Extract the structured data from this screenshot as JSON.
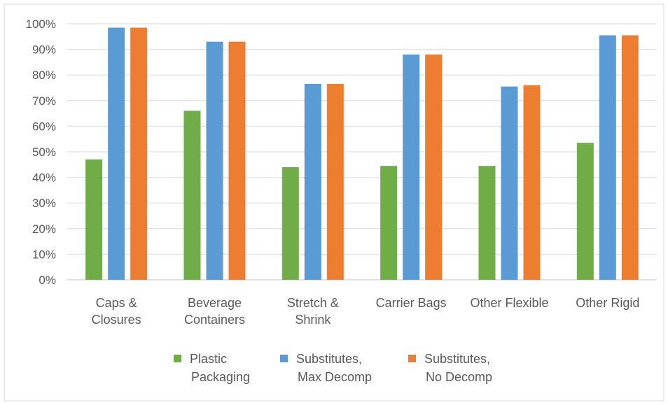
{
  "chart_data": {
    "type": "bar",
    "title": "",
    "xlabel": "",
    "ylabel": "",
    "categories": [
      [
        "Caps &",
        "Closures"
      ],
      [
        "Beverage",
        "Containers"
      ],
      [
        "Stretch &",
        "Shrink"
      ],
      [
        "Carrier Bags"
      ],
      [
        "Other Flexible"
      ],
      [
        "Other Rigid"
      ]
    ],
    "series": [
      {
        "name": [
          "Plastic",
          "Packaging"
        ],
        "color": "#70AD47",
        "values": [
          0.47,
          0.66,
          0.44,
          0.445,
          0.445,
          0.535
        ]
      },
      {
        "name": [
          "Substitutes,",
          "Max Decomp"
        ],
        "color": "#5B9BD5",
        "values": [
          0.985,
          0.93,
          0.765,
          0.88,
          0.755,
          0.955
        ]
      },
      {
        "name": [
          "Substitutes,",
          "No Decomp"
        ],
        "color": "#ED7D31",
        "values": [
          0.985,
          0.93,
          0.765,
          0.88,
          0.76,
          0.955
        ]
      }
    ],
    "ylim": [
      0,
      1
    ],
    "y_ticks": [
      "0%",
      "10%",
      "20%",
      "30%",
      "40%",
      "50%",
      "60%",
      "70%",
      "80%",
      "90%",
      "100%"
    ],
    "grid": true,
    "legend": "bottom"
  }
}
